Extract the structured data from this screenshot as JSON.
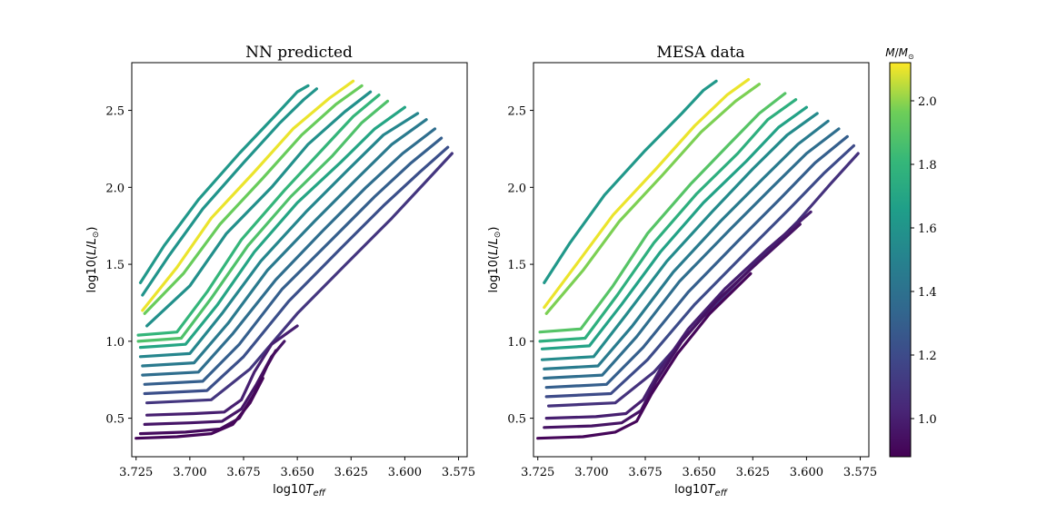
{
  "chart_data": [
    {
      "type": "line",
      "title": "NN predicted",
      "xlabel_base": "log10",
      "xlabel_var": "T",
      "xlabel_sub": "eff",
      "ylabel_prefix": "log10(",
      "ylabel_var": "L",
      "ylabel_slash": "/",
      "ylabel_var2": "L",
      "ylabel_sub": "⊙",
      "ylabel_suffix": ")",
      "xlim": [
        3.727,
        3.571
      ],
      "ylim": [
        0.25,
        2.81
      ],
      "x_inverted": true,
      "x_ticks": [
        3.725,
        3.7,
        3.675,
        3.65,
        3.625,
        3.6,
        3.575
      ],
      "x_tick_labels": [
        "3.725",
        "3.700",
        "3.675",
        "3.650",
        "3.625",
        "3.600",
        "3.575"
      ],
      "y_ticks": [
        0.5,
        1.0,
        1.5,
        2.0,
        2.5
      ],
      "y_tick_labels": [
        "0.5",
        "1.0",
        "1.5",
        "2.0",
        "2.5"
      ],
      "grid": false,
      "series": [
        {
          "mass": 1.62,
          "x": [
            3.723,
            3.712,
            3.696,
            3.677,
            3.66,
            3.65,
            3.645
          ],
          "y": [
            1.38,
            1.62,
            1.92,
            2.22,
            2.47,
            2.62,
            2.66
          ]
        },
        {
          "mass": 1.6,
          "x": [
            3.722,
            3.71,
            3.694,
            3.675,
            3.658,
            3.647,
            3.641
          ],
          "y": [
            1.3,
            1.55,
            1.86,
            2.16,
            2.42,
            2.57,
            2.64
          ]
        },
        {
          "mass": 2.1,
          "x": [
            3.722,
            3.706,
            3.69,
            3.67,
            3.652,
            3.635,
            3.624
          ],
          "y": [
            1.2,
            1.48,
            1.8,
            2.1,
            2.38,
            2.58,
            2.69
          ]
        },
        {
          "mass": 1.95,
          "x": [
            3.721,
            3.703,
            3.686,
            3.666,
            3.648,
            3.632,
            3.62
          ],
          "y": [
            1.18,
            1.44,
            1.76,
            2.06,
            2.34,
            2.54,
            2.66
          ]
        },
        {
          "mass": 1.58,
          "x": [
            3.72,
            3.7,
            3.683,
            3.662,
            3.645,
            3.628,
            3.616
          ],
          "y": [
            1.1,
            1.36,
            1.7,
            2.0,
            2.28,
            2.49,
            2.62
          ]
        },
        {
          "mass": 1.8,
          "x": [
            3.724,
            3.706,
            3.692,
            3.676,
            3.656,
            3.638,
            3.624,
            3.612
          ],
          "y": [
            1.04,
            1.06,
            1.32,
            1.66,
            1.98,
            2.25,
            2.46,
            2.6
          ]
        },
        {
          "mass": 1.88,
          "x": [
            3.724,
            3.704,
            3.69,
            3.673,
            3.653,
            3.634,
            3.62,
            3.608
          ],
          "y": [
            1.0,
            1.02,
            1.28,
            1.62,
            1.94,
            2.2,
            2.42,
            2.56
          ]
        },
        {
          "mass": 1.7,
          "x": [
            3.723,
            3.702,
            3.687,
            3.67,
            3.65,
            3.63,
            3.614,
            3.6
          ],
          "y": [
            0.96,
            0.98,
            1.24,
            1.58,
            1.9,
            2.16,
            2.38,
            2.52
          ]
        },
        {
          "mass": 1.52,
          "x": [
            3.723,
            3.7,
            3.685,
            3.667,
            3.646,
            3.626,
            3.61,
            3.594
          ],
          "y": [
            0.9,
            0.92,
            1.18,
            1.52,
            1.84,
            2.12,
            2.34,
            2.48
          ]
        },
        {
          "mass": 1.45,
          "x": [
            3.722,
            3.698,
            3.682,
            3.664,
            3.642,
            3.622,
            3.606,
            3.59
          ],
          "y": [
            0.84,
            0.86,
            1.12,
            1.46,
            1.78,
            2.06,
            2.28,
            2.44
          ]
        },
        {
          "mass": 1.38,
          "x": [
            3.722,
            3.696,
            3.68,
            3.66,
            3.638,
            3.618,
            3.601,
            3.586
          ],
          "y": [
            0.78,
            0.8,
            1.05,
            1.4,
            1.72,
            2.0,
            2.22,
            2.38
          ]
        },
        {
          "mass": 1.3,
          "x": [
            3.721,
            3.694,
            3.677,
            3.657,
            3.634,
            3.614,
            3.597,
            3.583
          ],
          "y": [
            0.72,
            0.74,
            0.98,
            1.34,
            1.66,
            1.94,
            2.16,
            2.32
          ]
        },
        {
          "mass": 1.22,
          "x": [
            3.721,
            3.692,
            3.675,
            3.654,
            3.63,
            3.61,
            3.593,
            3.58
          ],
          "y": [
            0.66,
            0.68,
            0.9,
            1.26,
            1.6,
            1.88,
            2.1,
            2.26
          ]
        },
        {
          "mass": 1.1,
          "x": [
            3.72,
            3.69,
            3.672,
            3.65,
            3.626,
            3.606,
            3.59,
            3.578
          ],
          "y": [
            0.6,
            0.62,
            0.82,
            1.18,
            1.52,
            1.8,
            2.04,
            2.22
          ]
        },
        {
          "mass": 1.0,
          "x": [
            3.72,
            3.698,
            3.684,
            3.676,
            3.67,
            3.662,
            3.65
          ],
          "y": [
            0.52,
            0.53,
            0.54,
            0.62,
            0.8,
            0.98,
            1.1
          ]
        },
        {
          "mass": 0.96,
          "x": [
            3.721,
            3.7,
            3.685,
            3.676,
            3.669,
            3.662,
            3.656
          ],
          "y": [
            0.46,
            0.47,
            0.48,
            0.56,
            0.72,
            0.9,
            1.0
          ]
        },
        {
          "mass": 0.92,
          "x": [
            3.723,
            3.702,
            3.686,
            3.677,
            3.67,
            3.664,
            3.66
          ],
          "y": [
            0.4,
            0.41,
            0.43,
            0.5,
            0.66,
            0.84,
            0.94
          ]
        },
        {
          "mass": 0.9,
          "x": [
            3.725,
            3.706,
            3.69,
            3.68,
            3.672,
            3.666
          ],
          "y": [
            0.37,
            0.38,
            0.4,
            0.46,
            0.6,
            0.76
          ]
        }
      ]
    },
    {
      "type": "line",
      "title": "MESA data",
      "xlabel_base": "log10",
      "xlabel_var": "T",
      "xlabel_sub": "eff",
      "ylabel_prefix": "log10(",
      "ylabel_var": "L",
      "ylabel_slash": "/",
      "ylabel_var2": "L",
      "ylabel_sub": "⊙",
      "ylabel_suffix": ")",
      "xlim": [
        3.727,
        3.571
      ],
      "ylim": [
        0.25,
        2.81
      ],
      "x_inverted": true,
      "x_ticks": [
        3.725,
        3.7,
        3.675,
        3.65,
        3.625,
        3.6,
        3.575
      ],
      "x_tick_labels": [
        "3.725",
        "3.700",
        "3.675",
        "3.650",
        "3.625",
        "3.600",
        "3.575"
      ],
      "y_ticks": [
        0.5,
        1.0,
        1.5,
        2.0,
        2.5
      ],
      "y_tick_labels": [
        "0.5",
        "1.0",
        "1.5",
        "2.0",
        "2.5"
      ],
      "grid": false,
      "series": [
        {
          "mass": 1.62,
          "x": [
            3.722,
            3.71,
            3.694,
            3.675,
            3.658,
            3.648,
            3.642
          ],
          "y": [
            1.38,
            1.64,
            1.95,
            2.24,
            2.48,
            2.63,
            2.69
          ]
        },
        {
          "mass": 2.1,
          "x": [
            3.722,
            3.707,
            3.69,
            3.67,
            3.652,
            3.637,
            3.627
          ],
          "y": [
            1.22,
            1.5,
            1.82,
            2.12,
            2.4,
            2.6,
            2.7
          ]
        },
        {
          "mass": 1.98,
          "x": [
            3.721,
            3.704,
            3.687,
            3.667,
            3.649,
            3.633,
            3.622
          ],
          "y": [
            1.18,
            1.46,
            1.78,
            2.08,
            2.36,
            2.56,
            2.67
          ]
        },
        {
          "mass": 1.9,
          "x": [
            3.724,
            3.705,
            3.69,
            3.674,
            3.654,
            3.636,
            3.622,
            3.61
          ],
          "y": [
            1.06,
            1.08,
            1.36,
            1.7,
            2.02,
            2.28,
            2.48,
            2.61
          ]
        },
        {
          "mass": 1.76,
          "x": [
            3.724,
            3.703,
            3.688,
            3.671,
            3.651,
            3.632,
            3.618,
            3.605
          ],
          "y": [
            1.0,
            1.02,
            1.3,
            1.64,
            1.96,
            2.22,
            2.44,
            2.57
          ]
        },
        {
          "mass": 1.68,
          "x": [
            3.723,
            3.701,
            3.686,
            3.668,
            3.648,
            3.628,
            3.613,
            3.6
          ],
          "y": [
            0.95,
            0.97,
            1.24,
            1.58,
            1.9,
            2.17,
            2.39,
            2.52
          ]
        },
        {
          "mass": 1.55,
          "x": [
            3.723,
            3.699,
            3.684,
            3.665,
            3.644,
            3.625,
            3.609,
            3.595
          ],
          "y": [
            0.88,
            0.9,
            1.17,
            1.52,
            1.84,
            2.12,
            2.34,
            2.48
          ]
        },
        {
          "mass": 1.46,
          "x": [
            3.722,
            3.697,
            3.681,
            3.662,
            3.64,
            3.62,
            3.604,
            3.59
          ],
          "y": [
            0.82,
            0.84,
            1.1,
            1.45,
            1.78,
            2.06,
            2.28,
            2.43
          ]
        },
        {
          "mass": 1.38,
          "x": [
            3.722,
            3.695,
            3.679,
            3.659,
            3.636,
            3.616,
            3.6,
            3.585
          ],
          "y": [
            0.76,
            0.78,
            1.03,
            1.39,
            1.72,
            2.0,
            2.22,
            2.38
          ]
        },
        {
          "mass": 1.3,
          "x": [
            3.721,
            3.693,
            3.676,
            3.655,
            3.632,
            3.612,
            3.596,
            3.581
          ],
          "y": [
            0.7,
            0.72,
            0.96,
            1.32,
            1.65,
            1.93,
            2.16,
            2.33
          ]
        },
        {
          "mass": 1.2,
          "x": [
            3.721,
            3.691,
            3.674,
            3.652,
            3.628,
            3.608,
            3.592,
            3.578
          ],
          "y": [
            0.64,
            0.66,
            0.88,
            1.24,
            1.58,
            1.86,
            2.09,
            2.27
          ]
        },
        {
          "mass": 1.08,
          "x": [
            3.72,
            3.689,
            3.671,
            3.648,
            3.624,
            3.604,
            3.589,
            3.576
          ],
          "y": [
            0.58,
            0.6,
            0.8,
            1.16,
            1.5,
            1.78,
            2.02,
            2.22
          ]
        },
        {
          "mass": 1.0,
          "x": [
            3.721,
            3.698,
            3.684,
            3.676,
            3.668,
            3.655,
            3.638,
            3.618,
            3.598
          ],
          "y": [
            0.5,
            0.51,
            0.53,
            0.62,
            0.82,
            1.08,
            1.34,
            1.6,
            1.84
          ]
        },
        {
          "mass": 0.95,
          "x": [
            3.722,
            3.7,
            3.686,
            3.677,
            3.67,
            3.658,
            3.642,
            3.622,
            3.603
          ],
          "y": [
            0.44,
            0.45,
            0.47,
            0.55,
            0.74,
            1.0,
            1.26,
            1.52,
            1.76
          ]
        },
        {
          "mass": 0.9,
          "x": [
            3.725,
            3.704,
            3.689,
            3.679,
            3.672,
            3.66,
            3.645,
            3.626
          ],
          "y": [
            0.37,
            0.38,
            0.41,
            0.48,
            0.66,
            0.92,
            1.18,
            1.44
          ]
        }
      ]
    }
  ],
  "colorbar": {
    "label_var": "M",
    "label_slash": "/",
    "label_var2": "M",
    "label_sub": "⊙",
    "vmin": 0.88,
    "vmax": 2.12,
    "colormap": "viridis",
    "ticks": [
      1.0,
      1.2,
      1.4,
      1.6,
      1.8,
      2.0
    ],
    "tick_labels": [
      "1.0",
      "1.2",
      "1.4",
      "1.6",
      "1.8",
      "2.0"
    ]
  }
}
